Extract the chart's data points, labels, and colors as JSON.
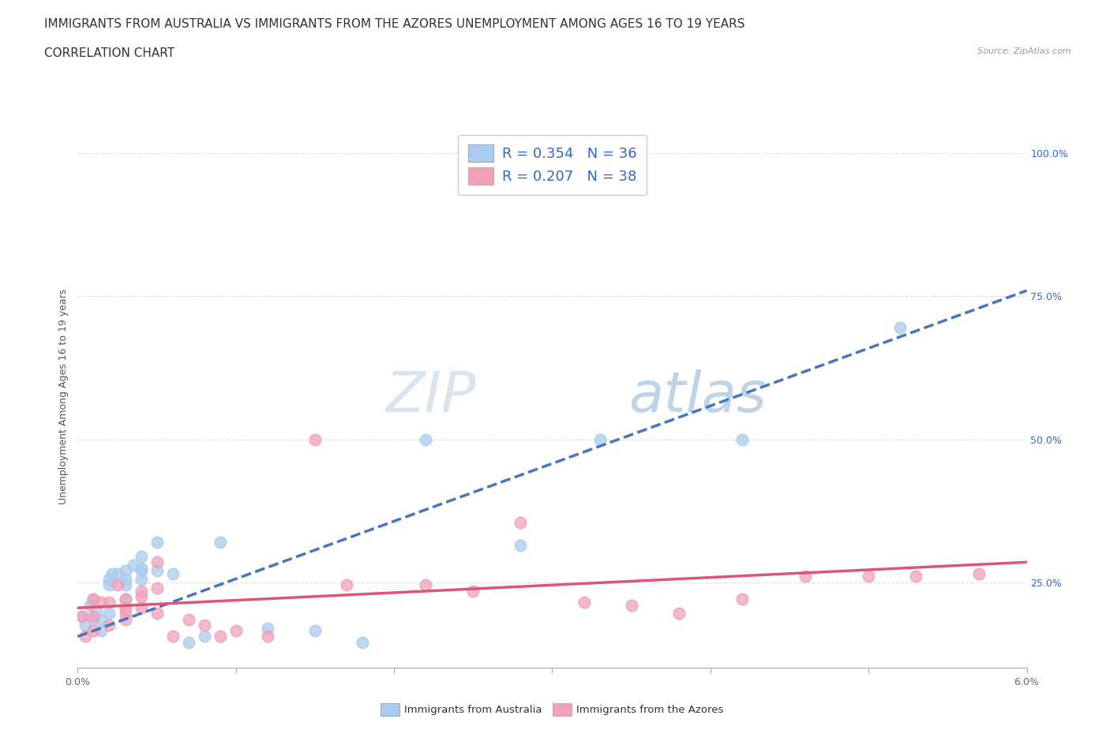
{
  "title_line1": "IMMIGRANTS FROM AUSTRALIA VS IMMIGRANTS FROM THE AZORES UNEMPLOYMENT AMONG AGES 16 TO 19 YEARS",
  "title_line2": "CORRELATION CHART",
  "source_text": "Source: ZipAtlas.com",
  "ylabel": "Unemployment Among Ages 16 to 19 years",
  "xmin": 0.0,
  "xmax": 0.06,
  "ymin": 0.1,
  "ymax": 1.05,
  "yticks": [
    0.25,
    0.5,
    0.75,
    1.0
  ],
  "ytick_labels": [
    "25.0%",
    "50.0%",
    "75.0%",
    "100.0%"
  ],
  "xticks": [
    0.0,
    0.01,
    0.02,
    0.03,
    0.04,
    0.05,
    0.06
  ],
  "xtick_labels": [
    "0.0%",
    "",
    "",
    "",
    "",
    "",
    "6.0%"
  ],
  "australia_color": "#aaccee",
  "azores_color": "#f0a0b8",
  "trend_australia_color": "#4477bb",
  "trend_azores_color": "#dd5577",
  "R_australia": 0.354,
  "N_australia": 36,
  "R_azores": 0.207,
  "N_azores": 38,
  "legend_R_color": "#3366cc",
  "watermark_zip": "ZIP",
  "watermark_atlas": "atlas",
  "grid_color": "#dddddd",
  "background_color": "#ffffff",
  "title_fontsize": 11,
  "axis_label_fontsize": 9,
  "tick_fontsize": 9,
  "legend_fontsize": 13,
  "aus_trend_y0": 0.155,
  "aus_trend_y1": 0.76,
  "azores_trend_y0": 0.205,
  "azores_trend_y1": 0.285,
  "australia_x": [
    0.0003,
    0.0005,
    0.0008,
    0.001,
    0.001,
    0.0012,
    0.0015,
    0.0015,
    0.002,
    0.002,
    0.002,
    0.0022,
    0.0025,
    0.003,
    0.003,
    0.003,
    0.003,
    0.0035,
    0.004,
    0.004,
    0.004,
    0.004,
    0.005,
    0.005,
    0.006,
    0.007,
    0.008,
    0.009,
    0.012,
    0.015,
    0.018,
    0.022,
    0.028,
    0.033,
    0.042,
    0.052
  ],
  "australia_y": [
    0.19,
    0.175,
    0.21,
    0.22,
    0.185,
    0.2,
    0.165,
    0.185,
    0.245,
    0.255,
    0.195,
    0.265,
    0.265,
    0.27,
    0.255,
    0.245,
    0.22,
    0.28,
    0.295,
    0.275,
    0.255,
    0.27,
    0.32,
    0.27,
    0.265,
    0.145,
    0.155,
    0.32,
    0.17,
    0.165,
    0.145,
    0.5,
    0.315,
    0.5,
    0.5,
    0.695
  ],
  "azores_x": [
    0.0003,
    0.0005,
    0.001,
    0.001,
    0.001,
    0.0015,
    0.002,
    0.002,
    0.0025,
    0.003,
    0.003,
    0.003,
    0.003,
    0.004,
    0.004,
    0.004,
    0.005,
    0.005,
    0.005,
    0.006,
    0.007,
    0.008,
    0.009,
    0.01,
    0.012,
    0.015,
    0.017,
    0.022,
    0.025,
    0.028,
    0.032,
    0.035,
    0.038,
    0.042,
    0.046,
    0.05,
    0.053,
    0.057
  ],
  "azores_y": [
    0.19,
    0.155,
    0.22,
    0.19,
    0.165,
    0.215,
    0.215,
    0.175,
    0.245,
    0.22,
    0.205,
    0.195,
    0.185,
    0.235,
    0.225,
    0.205,
    0.285,
    0.24,
    0.195,
    0.155,
    0.185,
    0.175,
    0.155,
    0.165,
    0.155,
    0.5,
    0.245,
    0.245,
    0.235,
    0.355,
    0.215,
    0.21,
    0.195,
    0.22,
    0.26,
    0.26,
    0.26,
    0.265
  ]
}
